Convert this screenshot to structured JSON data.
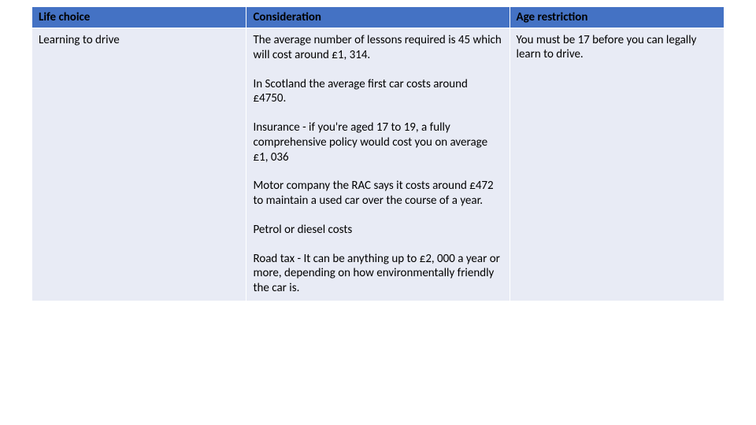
{
  "table": {
    "columns": [
      "Life choice",
      "Consideration",
      "Age restriction"
    ],
    "header_bg": "#4472c4",
    "header_text_color": "#000000",
    "cell_bg": "#e8ebf5",
    "border_color": "#ffffff",
    "font_family": "Calibri",
    "header_fontsize": 15,
    "body_fontsize": 15,
    "col_widths_pct": [
      31,
      38,
      31
    ],
    "rows": [
      {
        "life_choice": "Learning to drive",
        "consideration_paragraphs": [
          "The average number of lessons required is 45 which will cost around £1, 314.",
          "In Scotland the average first car costs around £4750.",
          "Insurance - if you're aged 17 to 19, a fully comprehensive policy would cost you on average £1, 036",
          "Motor company the RAC says it costs around £472 to maintain a used car over the course of a year.",
          "Petrol or diesel costs",
          "Road tax - It can be anything up to £2, 000 a year or more, depending on how environmentally friendly the car is."
        ],
        "age_restriction": "You must be 17 before you can legally learn to drive."
      }
    ]
  }
}
